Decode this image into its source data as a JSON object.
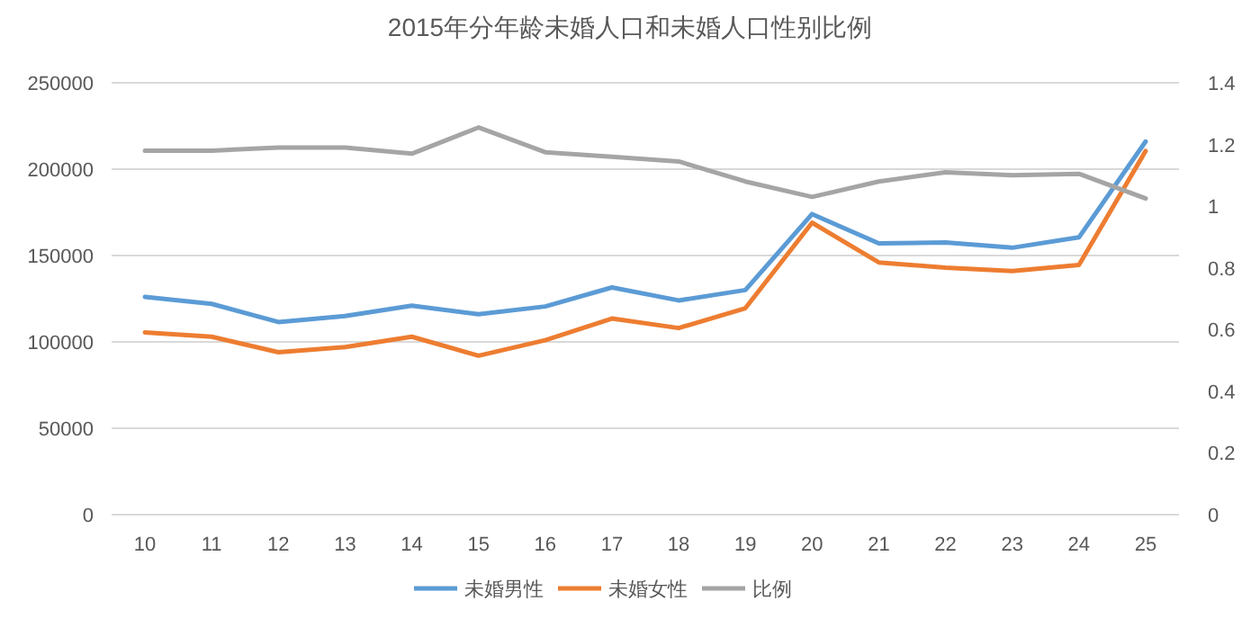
{
  "chart_data": {
    "type": "line",
    "title": "2015年分年龄未婚人口和未婚人口性别比例",
    "categories": [
      "10",
      "11",
      "12",
      "13",
      "14",
      "15",
      "16",
      "17",
      "18",
      "19",
      "20",
      "21",
      "22",
      "23",
      "24",
      "25"
    ],
    "series": [
      {
        "name": "未婚男性",
        "color": "#5b9bd5",
        "values": [
          126000,
          122000,
          111500,
          115000,
          121000,
          116000,
          120500,
          131500,
          124000,
          130000,
          174000,
          157000,
          157500,
          154500,
          160500,
          216000
        ]
      },
      {
        "name": "未婚女性",
        "color": "#ed7d31",
        "values": [
          105500,
          103000,
          94000,
          97000,
          103000,
          92000,
          101000,
          113500,
          108000,
          119500,
          169000,
          146000,
          143000,
          141000,
          144500,
          210500
        ]
      },
      {
        "name": "比例",
        "color": "#a5a5a5",
        "axis": "y2",
        "values": [
          1.18,
          1.18,
          1.19,
          1.19,
          1.17,
          1.255,
          1.175,
          1.16,
          1.145,
          1.08,
          1.03,
          1.08,
          1.11,
          1.1,
          1.105,
          1.025
        ]
      }
    ],
    "ylim": [
      0,
      250000
    ],
    "yticks": [
      0,
      50000,
      100000,
      150000,
      200000,
      250000
    ],
    "y2lim": [
      0,
      1.4
    ],
    "y2ticks": [
      0,
      0.2,
      0.4,
      0.6,
      0.8,
      1,
      1.2,
      1.4
    ],
    "grid": "y",
    "legend": "bottom",
    "marker": "none",
    "line_style": "solid"
  }
}
